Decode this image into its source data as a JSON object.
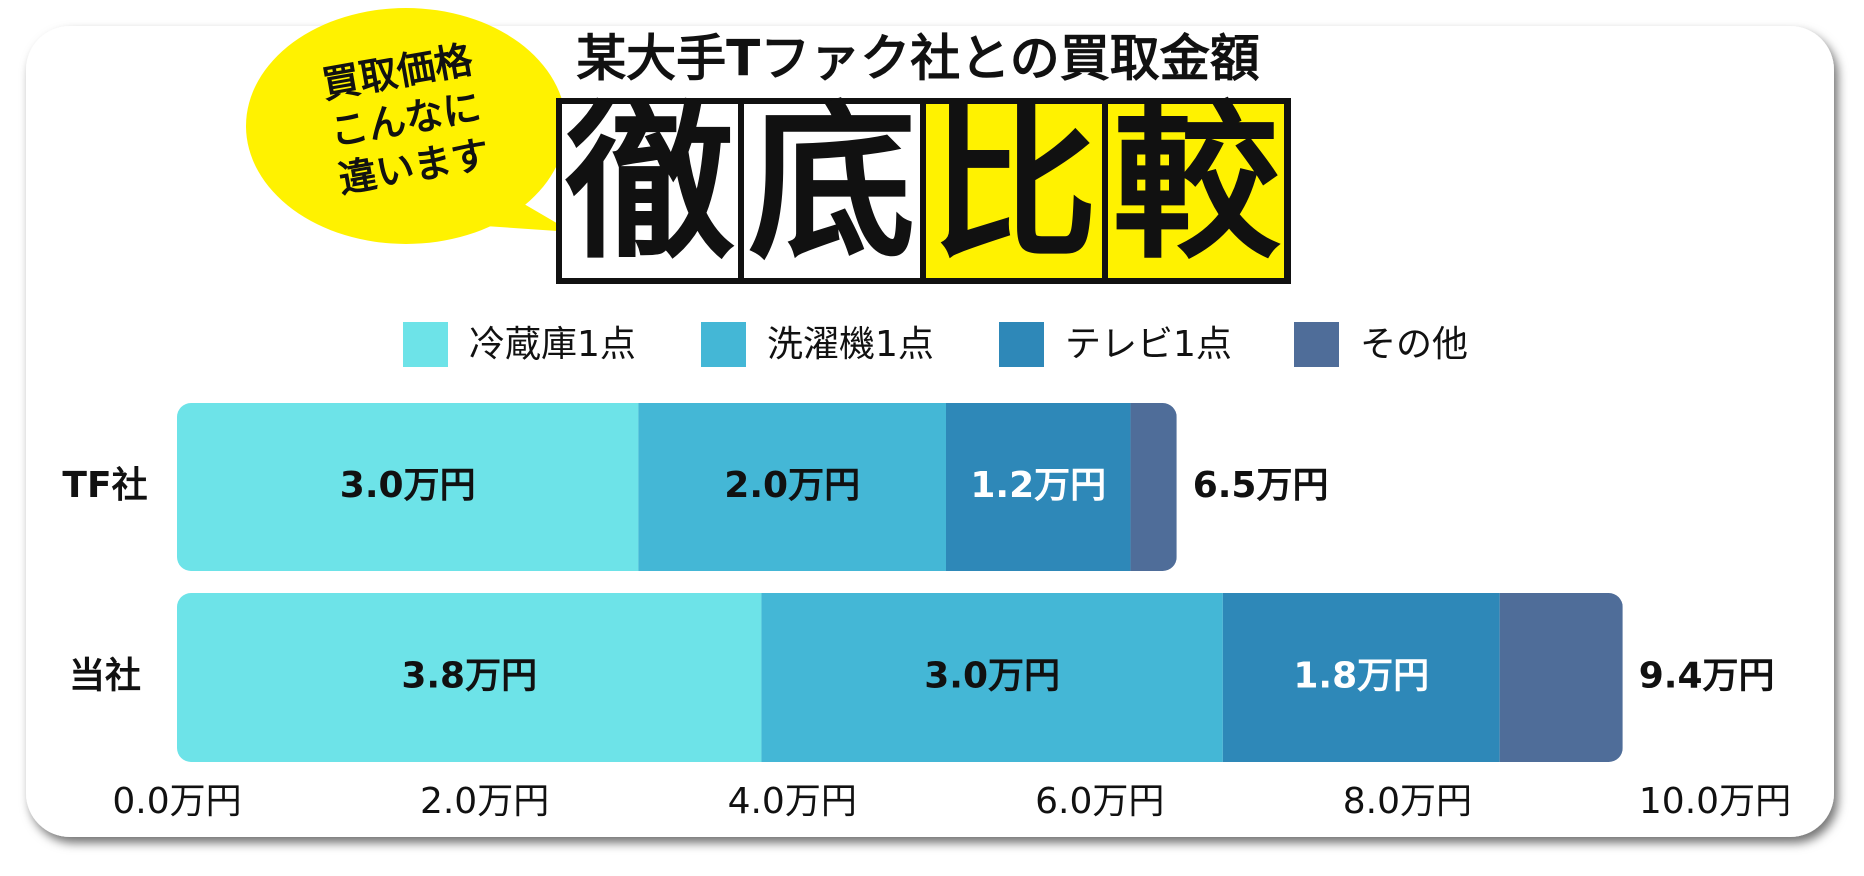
{
  "chart_data": {
    "type": "stacked-bar",
    "bubble_lines": [
      "買取価格",
      "こんなに",
      "違います"
    ],
    "subtitle": "某大手Tファク社との買取金額",
    "title_boxes": [
      {
        "text": "徹",
        "highlight": false
      },
      {
        "text": "底",
        "highlight": false
      },
      {
        "text": "比",
        "highlight": true
      },
      {
        "text": "較",
        "highlight": true
      }
    ],
    "highlight_color": "#fff200",
    "categories": [
      "TF社",
      "当社"
    ],
    "series": [
      {
        "name": "冷蔵庫1点",
        "color": "#6de3e8",
        "label_color": "#111111",
        "values": [
          3.0,
          3.8
        ],
        "value_labels": [
          "3.0万円",
          "3.8万円"
        ]
      },
      {
        "name": "洗濯機1点",
        "color": "#44b7d6",
        "label_color": "#111111",
        "values": [
          2.0,
          3.0
        ],
        "value_labels": [
          "2.0万円",
          "3.0万円"
        ]
      },
      {
        "name": "テレビ1点",
        "color": "#2e88b8",
        "label_color": "#ffffff",
        "values": [
          1.2,
          1.8
        ],
        "value_labels": [
          "1.2万円",
          "1.8万円"
        ]
      },
      {
        "name": "その他",
        "color": "#4f6d99",
        "values": [
          0.3,
          0.8
        ]
      }
    ],
    "totals": [
      6.5,
      9.4
    ],
    "total_labels": [
      "6.5万円",
      "9.4万円"
    ],
    "xlim": [
      0,
      10
    ],
    "xticks": [
      {
        "value": 0,
        "label": "0.0万円"
      },
      {
        "value": 2,
        "label": "2.0万円"
      },
      {
        "value": 4,
        "label": "4.0万円"
      },
      {
        "value": 6,
        "label": "6.0万円"
      },
      {
        "value": 8,
        "label": "8.0万円"
      },
      {
        "value": 10,
        "label": "10.0万円"
      }
    ]
  }
}
